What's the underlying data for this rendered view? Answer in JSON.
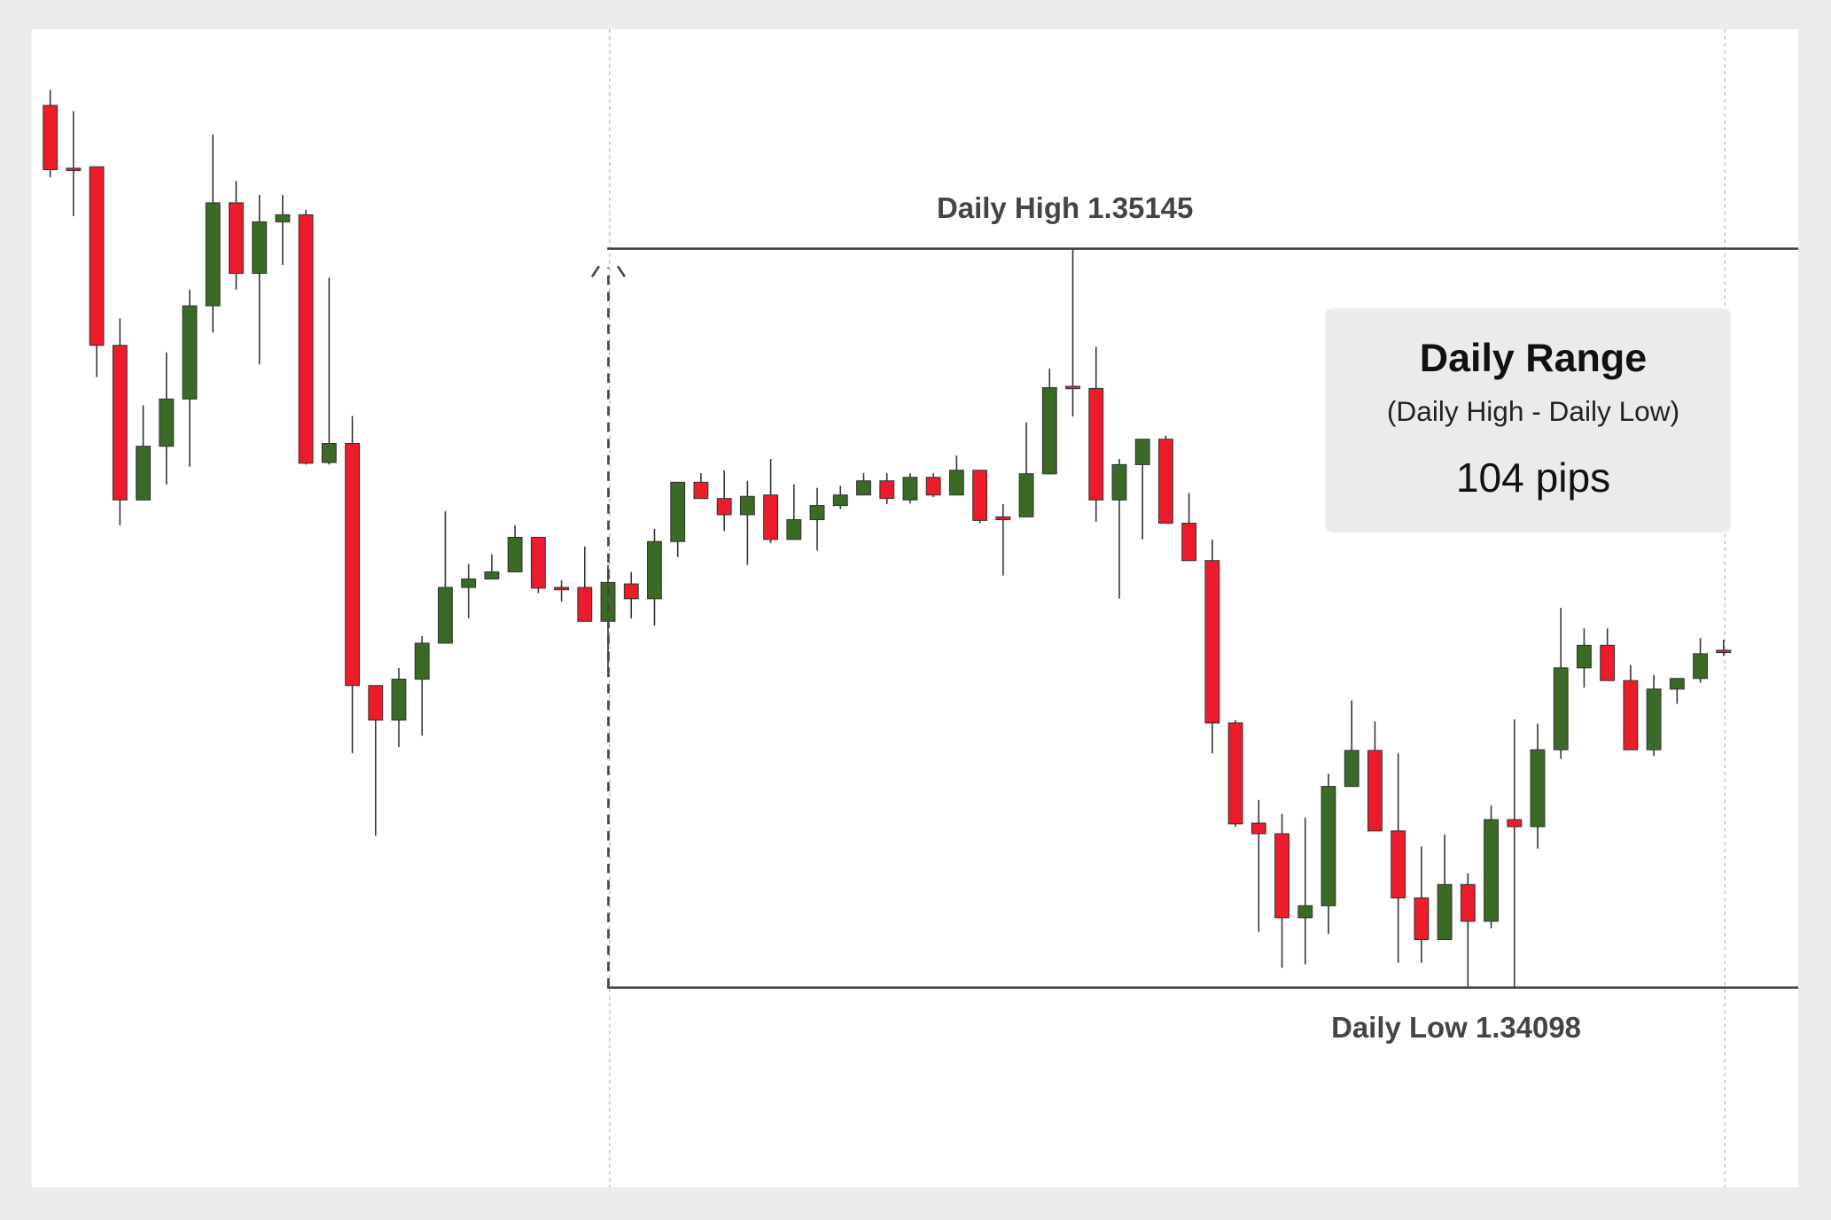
{
  "chart_data": {
    "type": "candlestick",
    "up_color": "#3a6a25",
    "down_color": "#ec1c2a",
    "ylim": [
      1.33815,
      1.35456
    ],
    "open": [
      1.35348,
      1.35259,
      1.35261,
      1.35008,
      1.34789,
      1.34865,
      1.34932,
      1.35064,
      1.3521,
      1.3511,
      1.35183,
      1.35193,
      1.34842,
      1.34869,
      1.34526,
      1.34477,
      1.34535,
      1.34586,
      1.34665,
      1.34677,
      1.34687,
      1.34736,
      1.34665,
      1.34665,
      1.34617,
      1.3467,
      1.34649,
      1.3473,
      1.34814,
      1.34791,
      1.34768,
      1.34796,
      1.34733,
      1.34761,
      1.34781,
      1.34796,
      1.34816,
      1.34789,
      1.34821,
      1.34796,
      1.34831,
      1.34765,
      1.34765,
      1.34826,
      1.3495,
      1.34947,
      1.34789,
      1.34839,
      1.34875,
      1.34756,
      1.34703,
      1.34473,
      1.34331,
      1.34316,
      1.34197,
      1.34214,
      1.34383,
      1.34434,
      1.3432,
      1.34225,
      1.34166,
      1.34244,
      1.34192,
      1.34336,
      1.34326,
      1.34435,
      1.34551,
      1.34583,
      1.34533,
      1.34435,
      1.34521,
      1.34536,
      1.34576
    ],
    "high": [
      1.3537,
      1.3534,
      1.35261,
      1.35046,
      1.34923,
      1.34998,
      1.35087,
      1.35307,
      1.35241,
      1.35221,
      1.35221,
      1.352,
      1.35104,
      1.34908,
      1.34526,
      1.34551,
      1.34596,
      1.34773,
      1.34698,
      1.34712,
      1.34753,
      1.34736,
      1.34675,
      1.34723,
      1.34697,
      1.34687,
      1.34748,
      1.34814,
      1.34827,
      1.34831,
      1.34816,
      1.34847,
      1.34811,
      1.34806,
      1.34809,
      1.34827,
      1.34827,
      1.34827,
      1.34827,
      1.34852,
      1.34831,
      1.34783,
      1.34899,
      1.34975,
      1.35145,
      1.35006,
      1.34847,
      1.34875,
      1.3488,
      1.34799,
      1.34733,
      1.34477,
      1.34364,
      1.34344,
      1.34339,
      1.34401,
      1.34505,
      1.34475,
      1.3443,
      1.34298,
      1.34315,
      1.3426,
      1.34356,
      1.34478,
      1.34472,
      1.34636,
      1.34607,
      1.34607,
      1.34555,
      1.34541,
      1.34536,
      1.34593,
      1.34591
    ],
    "low": [
      1.35246,
      1.35191,
      1.34963,
      1.34753,
      1.34789,
      1.34811,
      1.34836,
      1.35026,
      1.35087,
      1.34981,
      1.35122,
      1.34839,
      1.34839,
      1.3443,
      1.34313,
      1.34439,
      1.34455,
      1.34586,
      1.34621,
      1.34677,
      1.34687,
      1.34657,
      1.34645,
      1.34617,
      1.34546,
      1.34621,
      1.34611,
      1.34708,
      1.34791,
      1.34745,
      1.34697,
      1.34728,
      1.34733,
      1.34717,
      1.34776,
      1.34796,
      1.34783,
      1.34784,
      1.34793,
      1.34796,
      1.34756,
      1.34682,
      1.34765,
      1.34826,
      1.34907,
      1.34758,
      1.34649,
      1.34733,
      1.34756,
      1.34703,
      1.3443,
      1.34326,
      1.34177,
      1.34126,
      1.34131,
      1.34174,
      1.34383,
      1.3432,
      1.34133,
      1.34133,
      1.34166,
      1.34098,
      1.34182,
      1.34098,
      1.34295,
      1.34422,
      1.34523,
      1.34533,
      1.34435,
      1.34426,
      1.345,
      1.3453,
      1.34568
    ],
    "close": [
      1.35257,
      1.35257,
      1.35008,
      1.34789,
      1.34865,
      1.34932,
      1.35064,
      1.3521,
      1.3511,
      1.35183,
      1.35193,
      1.34841,
      1.34869,
      1.34526,
      1.34477,
      1.34535,
      1.34586,
      1.34665,
      1.34677,
      1.34687,
      1.34736,
      1.34664,
      1.34664,
      1.34617,
      1.34672,
      1.34649,
      1.3473,
      1.34814,
      1.34791,
      1.34768,
      1.34794,
      1.34733,
      1.34761,
      1.34781,
      1.34796,
      1.34816,
      1.34791,
      1.34821,
      1.34796,
      1.34831,
      1.3476,
      1.34761,
      1.34826,
      1.34948,
      1.34948,
      1.34789,
      1.34839,
      1.34875,
      1.34756,
      1.34703,
      1.34473,
      1.3433,
      1.34316,
      1.34197,
      1.34214,
      1.34383,
      1.34434,
      1.3432,
      1.34225,
      1.34166,
      1.34244,
      1.34192,
      1.34336,
      1.34326,
      1.34435,
      1.34551,
      1.34583,
      1.34533,
      1.34435,
      1.34521,
      1.34536,
      1.34571,
      1.34573
    ],
    "annotations": [
      {
        "label": "Daily High 1.35145",
        "value": 1.35145
      },
      {
        "label": "Daily Low 1.34098",
        "value": 1.34098
      }
    ],
    "info_box": {
      "title": "Daily Range",
      "subtitle": "(Daily High - Daily Low)",
      "text": "104 pips"
    }
  }
}
